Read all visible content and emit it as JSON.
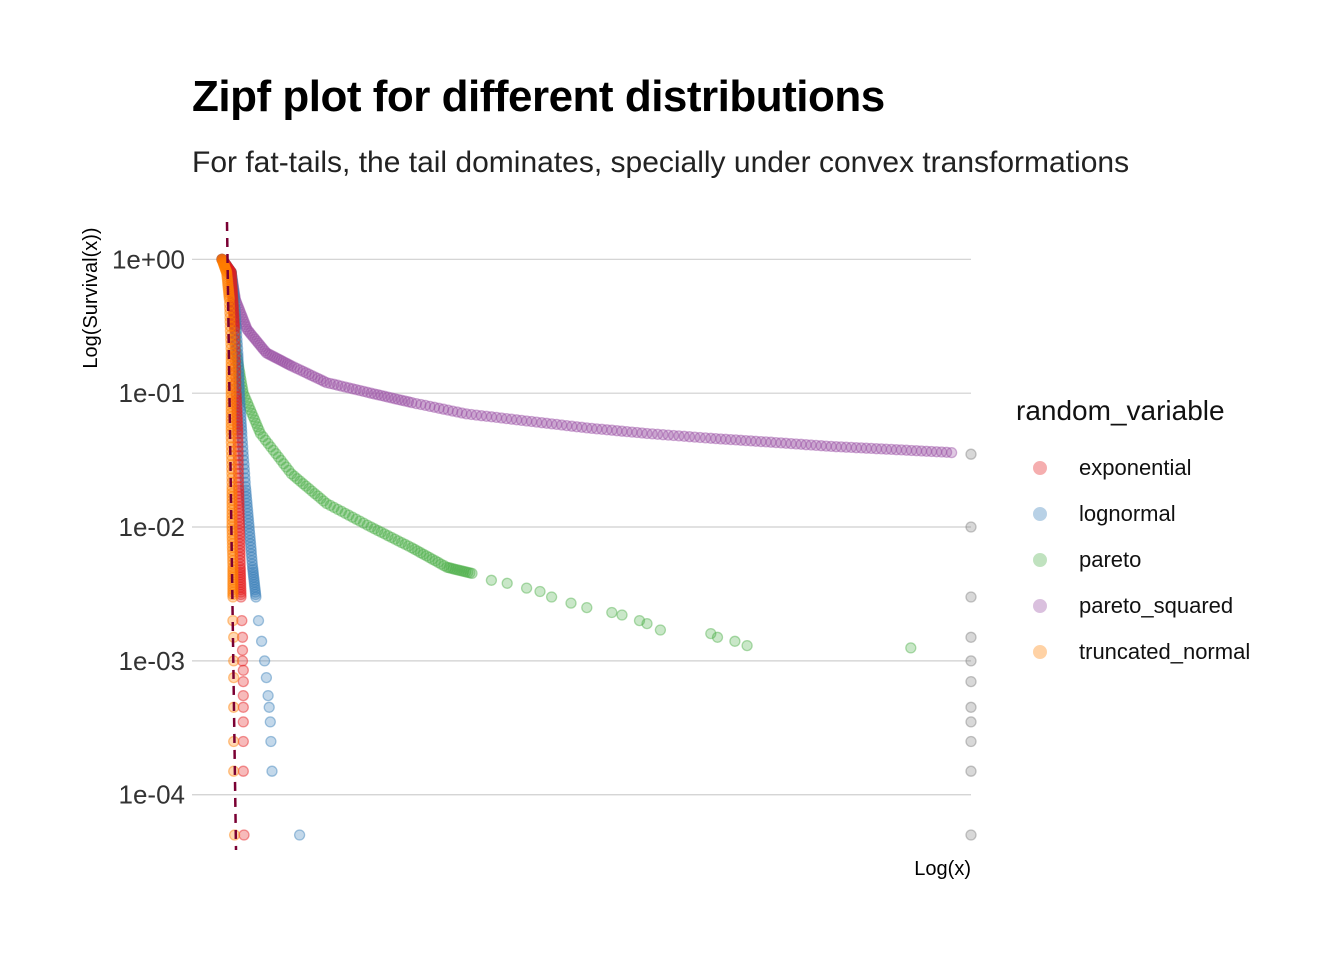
{
  "title": "Zipf plot for different distributions",
  "subtitle": "For fat-tails, the tail dominates, specially under convex transformations",
  "chart_data": {
    "type": "scatter",
    "x_scale": "log",
    "y_scale": "log",
    "xlabel": "Log(x)",
    "ylabel": "Log(Survival(x))",
    "y_ticks": [
      "1e+00",
      "1e-01",
      "1e-02",
      "1e-03",
      "1e-04"
    ],
    "ylim": [
      4e-05,
      1.6
    ],
    "x_tick_labels_shown": false,
    "grid": "horizontal major lines only",
    "legend": {
      "title": "random_variable",
      "placement": "right",
      "entries": [
        "exponential",
        "lognormal",
        "pareto",
        "pareto_squared",
        "truncated_normal"
      ]
    },
    "colors": {
      "exponential": "#e41a1c",
      "lognormal": "#377eb8",
      "pareto": "#4daf4a",
      "pareto_squared": "#984ea3",
      "truncated_normal": "#ff7f00",
      "clipped_points": "#7f7f7f",
      "reference_line": "#7a0033"
    },
    "reference_line": {
      "style": "dashed",
      "orientation": "vertical",
      "x": 1.0
    },
    "note_values": "x values in relative data units (log scale); y is the empirical survival probability",
    "series": [
      {
        "name": "exponential",
        "points": [
          [
            0.9,
            1.0
          ],
          [
            1.0,
            0.8
          ],
          [
            1.02,
            0.5
          ],
          [
            1.04,
            0.3
          ],
          [
            1.06,
            0.1
          ],
          [
            1.08,
            0.05
          ],
          [
            1.09,
            0.02
          ],
          [
            1.1,
            0.01
          ],
          [
            1.11,
            0.005
          ],
          [
            1.12,
            0.003
          ],
          [
            1.13,
            0.002
          ],
          [
            1.14,
            0.0015
          ],
          [
            1.14,
            0.0012
          ],
          [
            1.14,
            0.001
          ],
          [
            1.15,
            0.00085
          ],
          [
            1.15,
            0.0007
          ],
          [
            1.15,
            0.00055
          ],
          [
            1.15,
            0.00045
          ],
          [
            1.15,
            0.00035
          ],
          [
            1.15,
            0.00025
          ],
          [
            1.15,
            0.00015
          ],
          [
            1.16,
            5e-05
          ]
        ]
      },
      {
        "name": "lognormal",
        "points": [
          [
            0.9,
            1.0
          ],
          [
            1.0,
            0.8
          ],
          [
            1.04,
            0.5
          ],
          [
            1.08,
            0.2
          ],
          [
            1.1,
            0.1
          ],
          [
            1.13,
            0.05
          ],
          [
            1.18,
            0.02
          ],
          [
            1.23,
            0.01
          ],
          [
            1.28,
            0.005
          ],
          [
            1.33,
            0.003
          ],
          [
            1.37,
            0.002
          ],
          [
            1.42,
            0.0014
          ],
          [
            1.47,
            0.001
          ],
          [
            1.5,
            0.00075
          ],
          [
            1.53,
            0.00055
          ],
          [
            1.55,
            0.00045
          ],
          [
            1.57,
            0.00035
          ],
          [
            1.58,
            0.00025
          ],
          [
            1.6,
            0.00015
          ],
          [
            2.2,
            5e-05
          ]
        ]
      },
      {
        "name": "pareto",
        "points": [
          [
            0.9,
            1.0
          ],
          [
            1.0,
            0.8
          ],
          [
            1.03,
            0.5
          ],
          [
            1.06,
            0.2
          ],
          [
            1.15,
            0.1
          ],
          [
            1.4,
            0.05
          ],
          [
            2.0,
            0.025
          ],
          [
            3.0,
            0.015
          ],
          [
            5.0,
            0.01
          ],
          [
            8.0,
            0.007
          ],
          [
            12.0,
            0.005
          ],
          [
            16.0,
            0.0045
          ],
          [
            20.0,
            0.004
          ],
          [
            24.0,
            0.0038
          ],
          [
            30.0,
            0.0035
          ],
          [
            35.0,
            0.0033
          ],
          [
            40.0,
            0.003
          ],
          [
            50.0,
            0.0027
          ],
          [
            60.0,
            0.0025
          ],
          [
            80.0,
            0.0023
          ],
          [
            90.0,
            0.0022
          ],
          [
            110.0,
            0.002
          ],
          [
            120.0,
            0.0019
          ],
          [
            140.0,
            0.0017
          ],
          [
            250.0,
            0.0016
          ],
          [
            270.0,
            0.0015
          ],
          [
            330.0,
            0.0014
          ],
          [
            380.0,
            0.0013
          ],
          [
            2500.0,
            0.00125
          ]
        ]
      },
      {
        "name": "pareto_squared",
        "points": [
          [
            0.9,
            1.0
          ],
          [
            1.0,
            0.8
          ],
          [
            1.05,
            0.5
          ],
          [
            1.2,
            0.3
          ],
          [
            1.5,
            0.2
          ],
          [
            2.0,
            0.16
          ],
          [
            3.0,
            0.12
          ],
          [
            5.0,
            0.1
          ],
          [
            8.0,
            0.085
          ],
          [
            15.0,
            0.07
          ],
          [
            30.0,
            0.062
          ],
          [
            60.0,
            0.055
          ],
          [
            120.0,
            0.05
          ],
          [
            250.0,
            0.046
          ],
          [
            500.0,
            0.043
          ],
          [
            1000.0,
            0.04
          ],
          [
            2000.0,
            0.038
          ],
          [
            4000.0,
            0.036
          ]
        ]
      },
      {
        "name": "truncated_normal",
        "points": [
          [
            0.9,
            1.0
          ],
          [
            0.95,
            0.8
          ],
          [
            0.98,
            0.5
          ],
          [
            1.0,
            0.2
          ],
          [
            1.0,
            0.1
          ],
          [
            1.0,
            0.05
          ],
          [
            1.01,
            0.02
          ],
          [
            1.01,
            0.01
          ],
          [
            1.02,
            0.005
          ],
          [
            1.02,
            0.003
          ],
          [
            1.02,
            0.002
          ],
          [
            1.03,
            0.0015
          ],
          [
            1.03,
            0.001
          ],
          [
            1.03,
            0.00075
          ],
          [
            1.03,
            0.00045
          ],
          [
            1.03,
            0.00025
          ],
          [
            1.03,
            0.00015
          ],
          [
            1.04,
            5e-05
          ]
        ]
      },
      {
        "name": "clipped_points",
        "points": [
          [
            5000.0,
            0.035
          ],
          [
            5000.0,
            0.01
          ],
          [
            5000.0,
            0.003
          ],
          [
            5000.0,
            0.0015
          ],
          [
            5000.0,
            0.001
          ],
          [
            5000.0,
            0.0007
          ],
          [
            5000.0,
            0.00045
          ],
          [
            5000.0,
            0.00035
          ],
          [
            5000.0,
            0.00025
          ],
          [
            5000.0,
            0.00015
          ],
          [
            5000.0,
            5e-05
          ]
        ]
      }
    ]
  }
}
